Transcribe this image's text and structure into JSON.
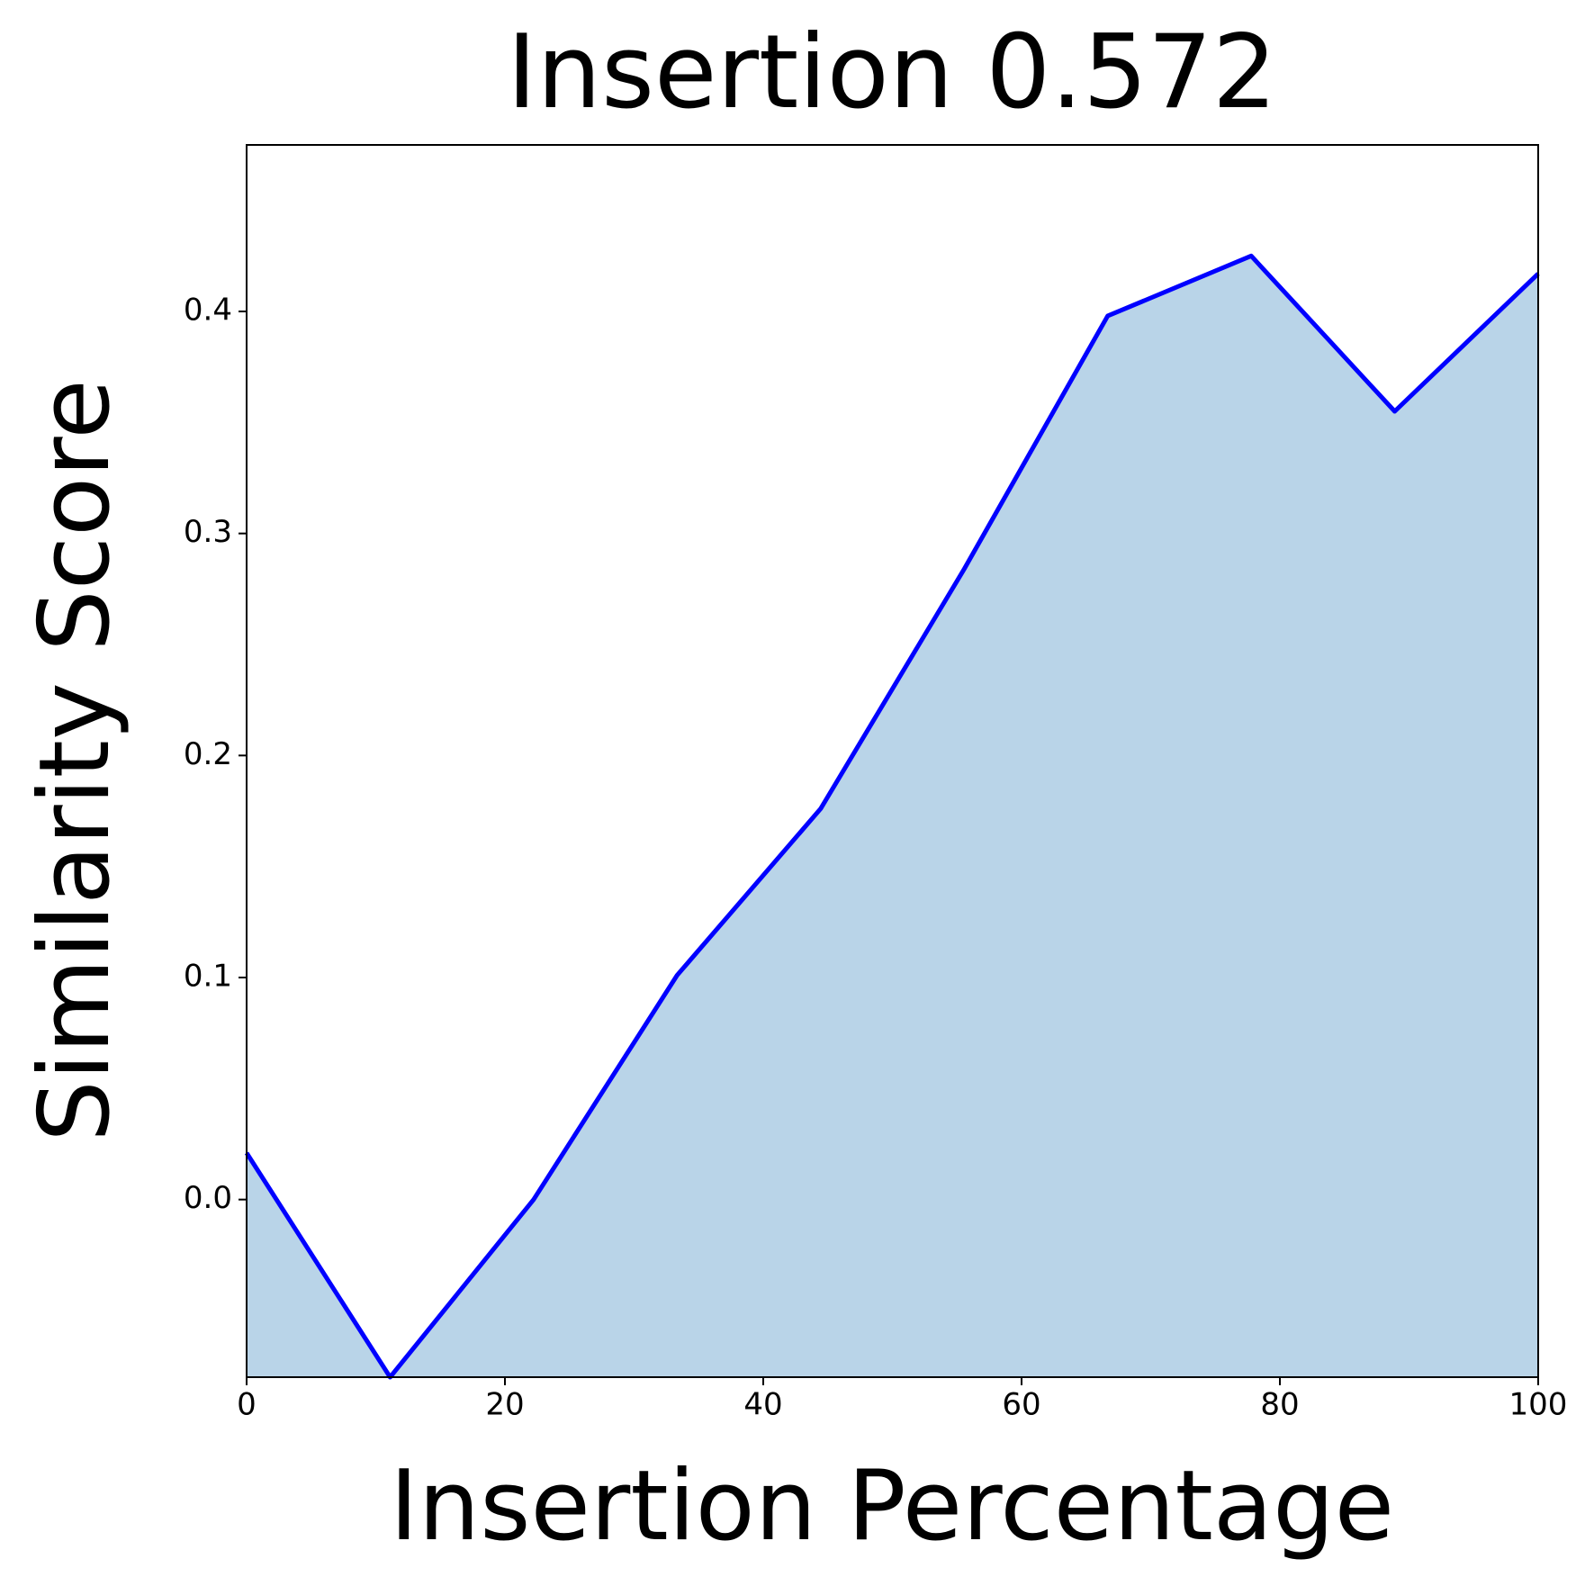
{
  "chart_data": {
    "type": "area",
    "title": "Insertion 0.572",
    "x_label": "Insertion Percentage",
    "y_label": "Similarity Score",
    "x": [
      0,
      11.11,
      22.22,
      33.33,
      44.44,
      55.56,
      66.67,
      77.78,
      88.89,
      100
    ],
    "series": [
      {
        "color": "#0000ff",
        "fill": "#b9d4e8",
        "values": [
          0.021,
          -0.08,
          0.0,
          0.101,
          0.176,
          0.284,
          0.398,
          0.425,
          0.355,
          0.417
        ]
      }
    ],
    "xlim": [
      0,
      100
    ],
    "xticks": [
      0,
      20,
      40,
      60,
      80,
      100
    ],
    "ylim": [
      -0.08,
      0.475
    ],
    "yticks": [
      {
        "value": 0,
        "label": "0.0"
      },
      0.1,
      0.2,
      0.3,
      0.4
    ],
    "grid": false
  }
}
